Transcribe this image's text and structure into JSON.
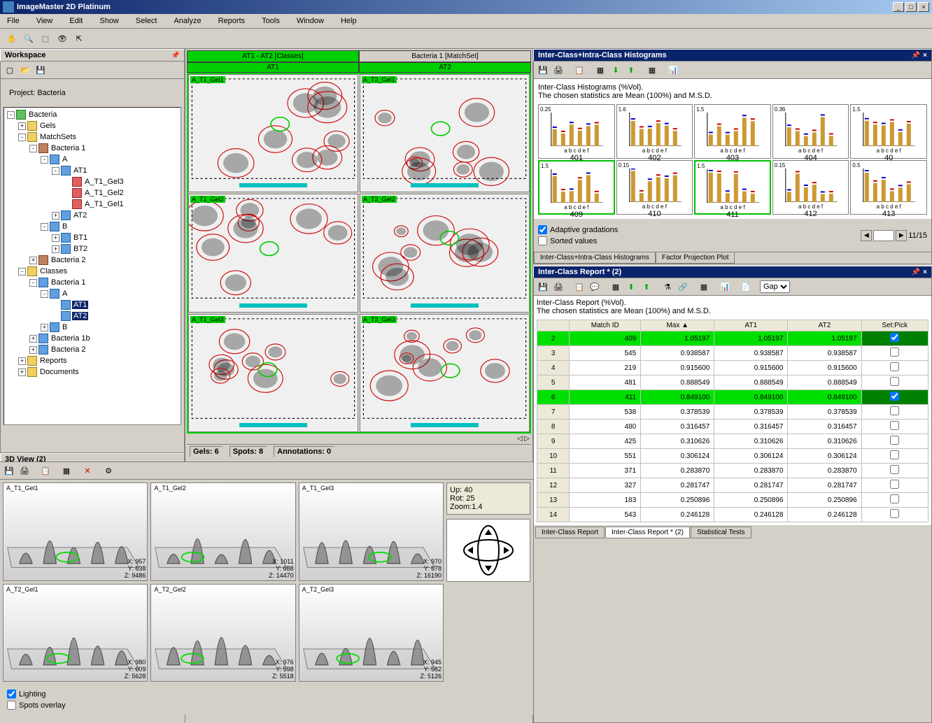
{
  "app": {
    "title": "ImageMaster 2D Platinum"
  },
  "menu": [
    "File",
    "View",
    "Edit",
    "Show",
    "Select",
    "Analyze",
    "Reports",
    "Tools",
    "Window",
    "Help"
  ],
  "toolbar_icons": [
    "✋",
    "🔍",
    "⬚",
    "👁",
    "⇱"
  ],
  "workspace": {
    "title": "Workspace",
    "project": "Project: Bacteria",
    "tree": [
      {
        "d": 0,
        "e": "-",
        "i": "proj",
        "t": "Bacteria"
      },
      {
        "d": 1,
        "e": "+",
        "i": "folder",
        "t": "Gels"
      },
      {
        "d": 1,
        "e": "-",
        "i": "folder",
        "t": "MatchSets"
      },
      {
        "d": 2,
        "e": "-",
        "i": "match",
        "t": "Bacteria 1"
      },
      {
        "d": 3,
        "e": "-",
        "i": "cls",
        "t": "A"
      },
      {
        "d": 4,
        "e": "-",
        "i": "cls",
        "t": "AT1"
      },
      {
        "d": 5,
        "e": "",
        "i": "gel",
        "t": "A_T1_Gel3"
      },
      {
        "d": 5,
        "e": "",
        "i": "gel",
        "t": "A_T1_Gel2"
      },
      {
        "d": 5,
        "e": "",
        "i": "gel",
        "t": "A_T1_Gel1"
      },
      {
        "d": 4,
        "e": "+",
        "i": "cls",
        "t": "AT2"
      },
      {
        "d": 3,
        "e": "-",
        "i": "cls",
        "t": "B"
      },
      {
        "d": 4,
        "e": "+",
        "i": "cls",
        "t": "BT1"
      },
      {
        "d": 4,
        "e": "+",
        "i": "cls",
        "t": "BT2"
      },
      {
        "d": 2,
        "e": "+",
        "i": "match",
        "t": "Bacteria 2"
      },
      {
        "d": 1,
        "e": "-",
        "i": "folder",
        "t": "Classes"
      },
      {
        "d": 2,
        "e": "-",
        "i": "cls",
        "t": "Bacteria 1"
      },
      {
        "d": 3,
        "e": "-",
        "i": "cls",
        "t": "A"
      },
      {
        "d": 4,
        "e": "",
        "i": "cls",
        "t": "AT1",
        "sel": true
      },
      {
        "d": 4,
        "e": "",
        "i": "cls",
        "t": "AT2",
        "sel": true
      },
      {
        "d": 3,
        "e": "+",
        "i": "cls",
        "t": "B"
      },
      {
        "d": 2,
        "e": "+",
        "i": "cls",
        "t": "Bacteria 1b"
      },
      {
        "d": 2,
        "e": "+",
        "i": "cls",
        "t": "Bacteria 2"
      },
      {
        "d": 1,
        "e": "+",
        "i": "folder",
        "t": "Reports"
      },
      {
        "d": 1,
        "e": "+",
        "i": "folder",
        "t": "Documents"
      }
    ]
  },
  "gels": {
    "tab_left": "AT1 - AT2 [Classes]",
    "tab_right": "Bacteria 1 [MatchSet]",
    "sub_left": "AT1",
    "sub_right": "AT2",
    "cells": [
      "A_T1_Gel1",
      "A_T2_Gel1",
      "A_T1_Gel2",
      "A_T2_Gel2",
      "A_T1_Gel3",
      "A_T2_Gel3"
    ],
    "status": {
      "gels": "6",
      "spots": "8",
      "annotations": "0",
      "gels_lbl": "Gels:",
      "spots_lbl": "Spots:",
      "ann_lbl": "Annotations:"
    }
  },
  "histograms": {
    "title": "Inter-Class+Intra-Class Histograms",
    "subtitle1": "Inter-Class Histograms (%Vol).",
    "subtitle2": "The chosen statistics are Mean (100%) and M.S.D.",
    "cells": [
      {
        "id": "401",
        "max": "0.25"
      },
      {
        "id": "402",
        "max": "1.6"
      },
      {
        "id": "403",
        "max": "1.5"
      },
      {
        "id": "404",
        "max": "0.36"
      },
      {
        "id": "40",
        "max": "1.5"
      },
      {
        "id": "409",
        "max": "1.5",
        "sel": true
      },
      {
        "id": "410",
        "max": "0.15"
      },
      {
        "id": "411",
        "max": "1.5",
        "sel": true
      },
      {
        "id": "412",
        "max": "0.15"
      },
      {
        "id": "413",
        "max": "0.5"
      }
    ],
    "axis_labels": "a b c d e f",
    "adaptive": "Adaptive gradations",
    "sorted": "Sorted values",
    "page": "11/15",
    "tabs": [
      "Inter-Class+Intra-Class Histograms",
      "Factor Projection Plot"
    ],
    "colors": {
      "bar": "#cc9933",
      "marker_a": "#cc0000",
      "marker_b": "#0000cc",
      "grid": "#cccccc"
    }
  },
  "report": {
    "title": "Inter-Class Report * (2)",
    "subtitle1": "Inter-Class Report (%Vol).",
    "subtitle2": "The chosen statistics are Mean (100%) and M.S.D.",
    "select": "Gap",
    "columns": [
      "",
      "Match ID",
      "Max",
      "AT1",
      "AT2",
      "Set:Pick"
    ],
    "rows": [
      {
        "n": 2,
        "id": 409,
        "max": "1.05197",
        "at1": "1.05197",
        "at2": "1.05197",
        "pick": true,
        "hl": true
      },
      {
        "n": 3,
        "id": 545,
        "max": "0.938587",
        "at1": "0.938587",
        "at2": "0.938587",
        "pick": false
      },
      {
        "n": 4,
        "id": 219,
        "max": "0.915600",
        "at1": "0.915600",
        "at2": "0.915600",
        "pick": false
      },
      {
        "n": 5,
        "id": 481,
        "max": "0.888549",
        "at1": "0.888549",
        "at2": "0.888549",
        "pick": false
      },
      {
        "n": 6,
        "id": 411,
        "max": "0.849100",
        "at1": "0.849100",
        "at2": "0.849100",
        "pick": true,
        "hl": true
      },
      {
        "n": 7,
        "id": 538,
        "max": "0.378539",
        "at1": "0.378539",
        "at2": "0.378539",
        "pick": false
      },
      {
        "n": 8,
        "id": 480,
        "max": "0.316457",
        "at1": "0.316457",
        "at2": "0.316457",
        "pick": false
      },
      {
        "n": 9,
        "id": 425,
        "max": "0.310626",
        "at1": "0.310626",
        "at2": "0.310626",
        "pick": false
      },
      {
        "n": 10,
        "id": 551,
        "max": "0.306124",
        "at1": "0.306124",
        "at2": "0.306124",
        "pick": false
      },
      {
        "n": 11,
        "id": 371,
        "max": "0.283870",
        "at1": "0.283870",
        "at2": "0.283870",
        "pick": false
      },
      {
        "n": 12,
        "id": 327,
        "max": "0.281747",
        "at1": "0.281747",
        "at2": "0.281747",
        "pick": false
      },
      {
        "n": 13,
        "id": 183,
        "max": "0.250896",
        "at1": "0.250896",
        "at2": "0.250896",
        "pick": false
      },
      {
        "n": 14,
        "id": 543,
        "max": "0.246128",
        "at1": "0.246128",
        "at2": "0.246128",
        "pick": false
      }
    ],
    "bottom_tabs": [
      "Inter-Class Report",
      "Inter-Class Report * (2)",
      "Statistical Tests"
    ]
  },
  "view3d": {
    "title": "3D View (2)",
    "cells": [
      {
        "lbl": "A_T1_Gel1",
        "x": "957",
        "y": "638",
        "z": "9486"
      },
      {
        "lbl": "A_T1_Gel2",
        "x": "1011",
        "y": "688",
        "z": "14470"
      },
      {
        "lbl": "A_T1_Gel3",
        "x": "970",
        "y": "678",
        "z": "16190"
      },
      {
        "lbl": "A_T2_Gel1",
        "x": "980",
        "y": "609",
        "z": "5628"
      },
      {
        "lbl": "A_T2_Gel2",
        "x": "976",
        "y": "598",
        "z": "5518"
      },
      {
        "lbl": "A_T2_Gel3",
        "x": "945",
        "y": "582",
        "z": "5126"
      }
    ],
    "info": {
      "up": "Up: 40",
      "rot": "Rot: 25",
      "zoom": "Zoom:1.4"
    },
    "lighting": "Lighting",
    "spots": "Spots overlay"
  }
}
